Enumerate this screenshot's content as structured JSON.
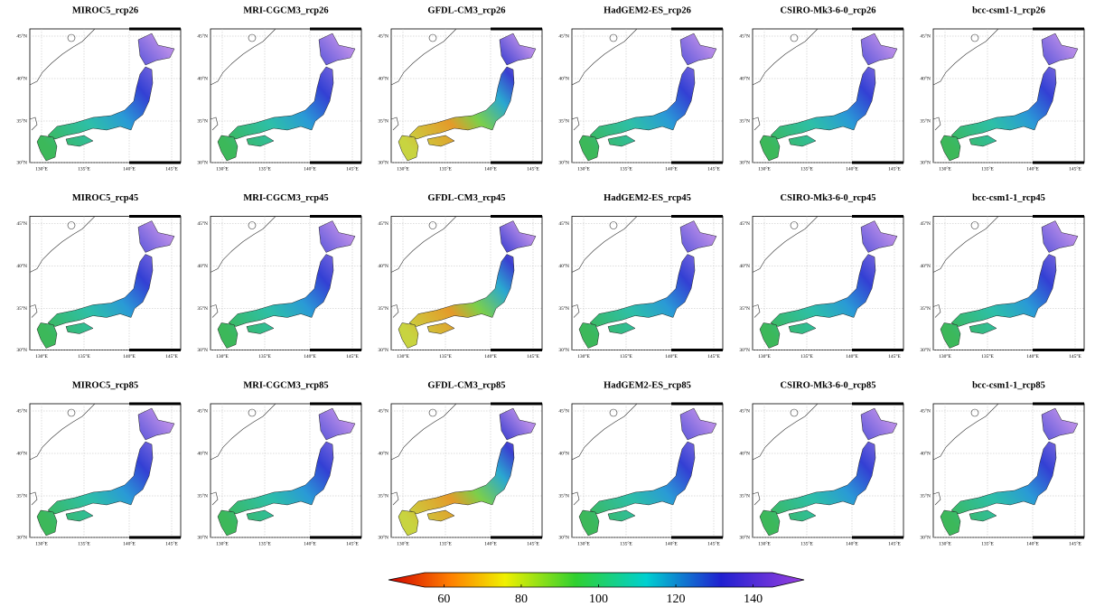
{
  "panels": [
    {
      "title": "MIROC5_rcp26"
    },
    {
      "title": "MRI-CGCM3_rcp26"
    },
    {
      "title": "GFDL-CM3_rcp26"
    },
    {
      "title": "HadGEM2-ES_rcp26"
    },
    {
      "title": "CSIRO-Mk3-6-0_rcp26"
    },
    {
      "title": "bcc-csm1-1_rcp26"
    },
    {
      "title": "MIROC5_rcp45"
    },
    {
      "title": "MRI-CGCM3_rcp45"
    },
    {
      "title": "GFDL-CM3_rcp45"
    },
    {
      "title": "HadGEM2-ES_rcp45"
    },
    {
      "title": "CSIRO-Mk3-6-0_rcp45"
    },
    {
      "title": "bcc-csm1-1_rcp45"
    },
    {
      "title": "MIROC5_rcp85"
    },
    {
      "title": "MRI-CGCM3_rcp85"
    },
    {
      "title": "GFDL-CM3_rcp85"
    },
    {
      "title": "HadGEM2-ES_rcp85"
    },
    {
      "title": "CSIRO-Mk3-6-0_rcp85"
    },
    {
      "title": "bcc-csm1-1_rcp85"
    }
  ],
  "lat_labels": [
    "45°N",
    "40°N",
    "35°N",
    "30°N"
  ],
  "lon_labels": [
    "130°E",
    "135°E",
    "140°E",
    "145°E"
  ],
  "colorbar": {
    "range": [
      55,
      145
    ],
    "ticks": [
      60,
      80,
      100,
      120,
      140
    ]
  }
}
